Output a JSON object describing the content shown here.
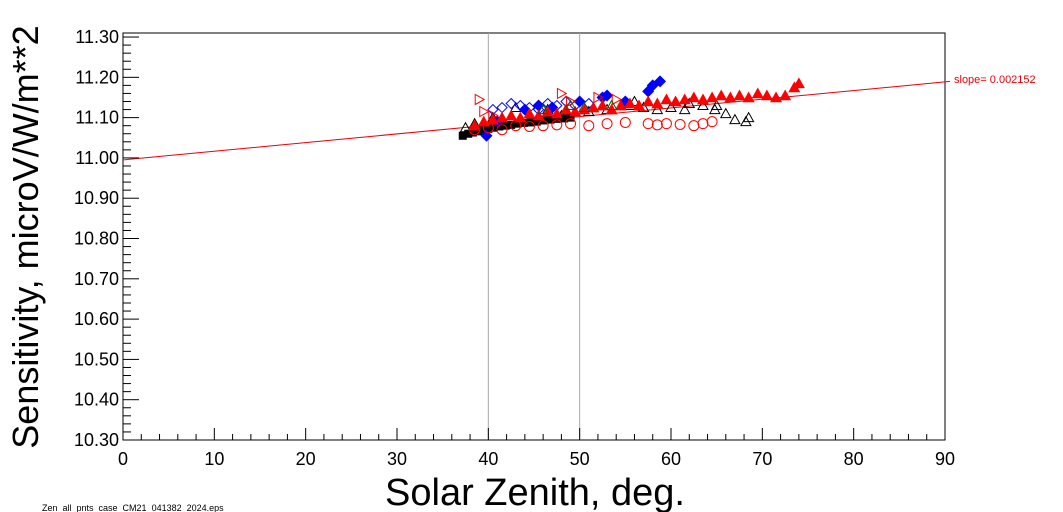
{
  "chart_data": {
    "type": "scatter",
    "title": "",
    "xlabel": "Solar Zenith, deg.",
    "ylabel": "Sensitivity, microV/W/m**2",
    "xlim": [
      0,
      90
    ],
    "ylim": [
      10.3,
      11.31
    ],
    "x_ticks": [
      "0",
      "10",
      "20",
      "30",
      "40",
      "50",
      "60",
      "70",
      "80",
      "90"
    ],
    "y_ticks": [
      "10.30",
      "10.40",
      "10.50",
      "10.60",
      "10.70",
      "10.80",
      "10.90",
      "11.00",
      "11.10",
      "11.20",
      "11.30"
    ],
    "vertical_lines": [
      40,
      50
    ],
    "grid": false,
    "fit": {
      "label": "slope= 0.002152",
      "intercept": 10.995,
      "slope": 0.002152,
      "color": "#e8000b"
    },
    "series": [
      {
        "marker": "filled-square",
        "color": "#000000",
        "x": [
          37.2,
          37.8,
          38.3,
          38.9,
          39.4,
          40.0,
          40.6,
          41.2,
          41.9,
          42.5,
          43.2,
          43.9,
          44.6,
          45.3,
          46.0,
          46.8,
          47.5,
          48.3,
          49.0
        ],
        "y": [
          11.055,
          11.06,
          11.063,
          11.066,
          11.07,
          11.072,
          11.075,
          11.078,
          11.08,
          11.082,
          11.085,
          11.087,
          11.088,
          11.09,
          11.093,
          11.095,
          11.097,
          11.098,
          11.1
        ]
      },
      {
        "marker": "open-triangle",
        "color": "#000000",
        "x": [
          37.5,
          38.5,
          40.5,
          43.0,
          46.5,
          48.0,
          51.0,
          53.0,
          55.5,
          57.0,
          58.5,
          60.0,
          61.5,
          63.5,
          64.8,
          66.0,
          67.0,
          68.2,
          68.5,
          56.0,
          62.0,
          65.0
        ],
        "y": [
          11.075,
          11.085,
          11.1,
          11.125,
          11.12,
          11.105,
          11.115,
          11.12,
          11.13,
          11.125,
          11.12,
          11.125,
          11.12,
          11.13,
          11.12,
          11.11,
          11.095,
          11.09,
          11.1,
          11.14,
          11.135,
          11.13
        ]
      },
      {
        "marker": "open-diamond",
        "color": "#0000ff",
        "x": [
          40.5,
          41.5,
          42.5,
          43.5,
          44.5,
          45.5,
          46.5,
          47.5,
          48.5,
          49.5,
          51.0
        ],
        "y": [
          11.12,
          11.125,
          11.135,
          11.13,
          11.125,
          11.12,
          11.135,
          11.13,
          11.14,
          11.13,
          11.135
        ]
      },
      {
        "marker": "filled-diamond",
        "color": "#0000ff",
        "x": [
          39.8,
          41.0,
          44.0,
          45.5,
          47.0,
          50.0,
          52.5,
          53.0,
          55.0,
          57.5,
          58.0,
          58.8
        ],
        "y": [
          11.055,
          11.09,
          11.12,
          11.13,
          11.125,
          11.14,
          11.15,
          11.155,
          11.14,
          11.165,
          11.18,
          11.19
        ]
      },
      {
        "marker": "open-circle",
        "color": "#ff0000",
        "x": [
          38.5,
          40.0,
          41.5,
          43.0,
          44.5,
          46.0,
          47.5,
          49.0,
          51.0,
          53.0,
          55.0,
          57.5,
          58.5,
          59.5,
          61.0,
          62.5,
          63.5,
          64.5
        ],
        "y": [
          11.07,
          11.075,
          11.07,
          11.08,
          11.078,
          11.08,
          11.082,
          11.085,
          11.08,
          11.085,
          11.088,
          11.085,
          11.082,
          11.085,
          11.083,
          11.08,
          11.085,
          11.09
        ]
      },
      {
        "marker": "open-triangle-right",
        "color": "#ff0000",
        "x": [
          39.0,
          39.5,
          40.5,
          48.0,
          49.0,
          52.0,
          54.0
        ],
        "y": [
          11.145,
          11.115,
          11.105,
          11.16,
          11.14,
          11.15,
          11.145
        ]
      },
      {
        "marker": "filled-triangle",
        "color": "#ff0000",
        "x": [
          38.5,
          39.5,
          40.5,
          41.5,
          42.5,
          43.5,
          44.5,
          45.5,
          46.5,
          47.5,
          48.5,
          49.5,
          50.5,
          51.5,
          52.5,
          53.5,
          54.5,
          55.5,
          56.5,
          57.5,
          58.5,
          59.5,
          60.5,
          61.5,
          62.5,
          63.5,
          64.5,
          65.5,
          66.5,
          67.5,
          68.5,
          69.5,
          70.5,
          71.5,
          72.5,
          73.5,
          74.0
        ],
        "y": [
          11.08,
          11.09,
          11.095,
          11.1,
          11.105,
          11.1,
          11.11,
          11.105,
          11.115,
          11.11,
          11.12,
          11.115,
          11.12,
          11.125,
          11.13,
          11.12,
          11.13,
          11.135,
          11.13,
          11.14,
          11.135,
          11.145,
          11.14,
          11.145,
          11.15,
          11.145,
          11.15,
          11.155,
          11.15,
          11.155,
          11.15,
          11.16,
          11.155,
          11.15,
          11.155,
          11.175,
          11.185
        ]
      },
      {
        "marker": "open-triangle-green",
        "color": "#006400",
        "x": [
          46.0,
          49.0,
          50.5,
          53.5
        ],
        "y": [
          11.12,
          11.13,
          11.125,
          11.13
        ]
      }
    ]
  },
  "footer": {
    "filename": "Zen_all_pnts_case_CM21_041382_2024.eps"
  }
}
